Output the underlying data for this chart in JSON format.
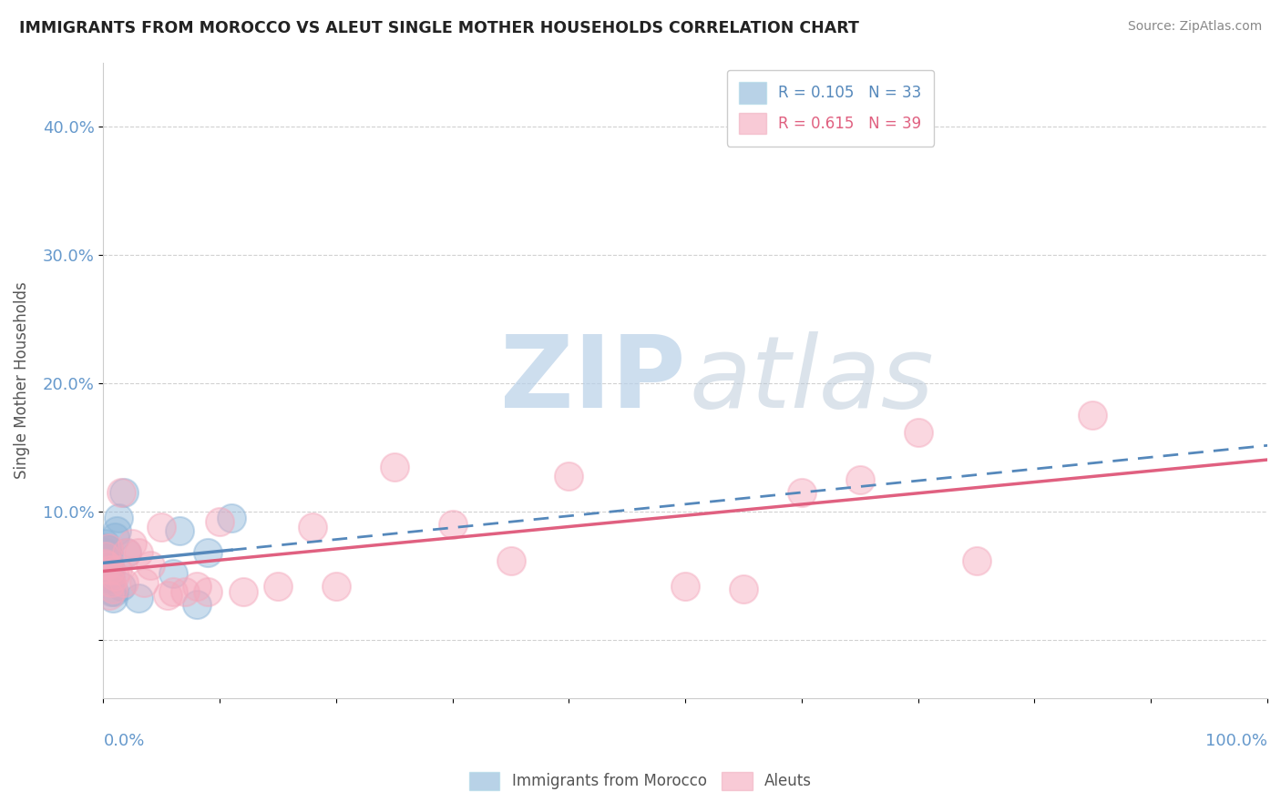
{
  "title": "IMMIGRANTS FROM MOROCCO VS ALEUT SINGLE MOTHER HOUSEHOLDS CORRELATION CHART",
  "source": "Source: ZipAtlas.com",
  "ylabel": "Single Mother Households",
  "ytick_values": [
    0.0,
    0.1,
    0.2,
    0.3,
    0.4
  ],
  "watermark_zip": "ZIP",
  "watermark_atlas": "atlas",
  "xlim": [
    0,
    1.0
  ],
  "ylim": [
    -0.045,
    0.45
  ],
  "legend_label_blue": "R = 0.105   N = 33",
  "legend_label_pink": "R = 0.615   N = 39",
  "blue_x": [
    0.001,
    0.001,
    0.001,
    0.002,
    0.002,
    0.002,
    0.003,
    0.003,
    0.003,
    0.003,
    0.004,
    0.004,
    0.004,
    0.005,
    0.005,
    0.005,
    0.006,
    0.006,
    0.007,
    0.008,
    0.009,
    0.01,
    0.011,
    0.013,
    0.015,
    0.018,
    0.02,
    0.03,
    0.06,
    0.065,
    0.08,
    0.09,
    0.11
  ],
  "blue_y": [
    0.068,
    0.075,
    0.06,
    0.072,
    0.065,
    0.058,
    0.068,
    0.062,
    0.055,
    0.05,
    0.07,
    0.065,
    0.048,
    0.058,
    0.055,
    0.052,
    0.055,
    0.048,
    0.038,
    0.033,
    0.038,
    0.08,
    0.085,
    0.095,
    0.042,
    0.115,
    0.068,
    0.033,
    0.052,
    0.085,
    0.028,
    0.068,
    0.095
  ],
  "pink_x": [
    0.001,
    0.002,
    0.003,
    0.004,
    0.005,
    0.006,
    0.007,
    0.008,
    0.01,
    0.012,
    0.015,
    0.018,
    0.02,
    0.025,
    0.03,
    0.035,
    0.04,
    0.05,
    0.055,
    0.06,
    0.07,
    0.08,
    0.09,
    0.1,
    0.12,
    0.15,
    0.18,
    0.2,
    0.25,
    0.3,
    0.35,
    0.4,
    0.5,
    0.55,
    0.6,
    0.65,
    0.7,
    0.75,
    0.85
  ],
  "pink_y": [
    0.06,
    0.065,
    0.058,
    0.072,
    0.035,
    0.055,
    0.045,
    0.04,
    0.05,
    0.055,
    0.115,
    0.045,
    0.068,
    0.075,
    0.068,
    0.045,
    0.058,
    0.088,
    0.035,
    0.038,
    0.038,
    0.042,
    0.038,
    0.092,
    0.038,
    0.042,
    0.088,
    0.042,
    0.135,
    0.09,
    0.062,
    0.128,
    0.042,
    0.04,
    0.115,
    0.125,
    0.162,
    0.062,
    0.175
  ],
  "blue_dot_color": "#8ab4d8",
  "pink_dot_color": "#f4a8bc",
  "blue_line_color": "#5588bb",
  "pink_line_color": "#e06080",
  "grid_color": "#cccccc",
  "bg_color": "#ffffff",
  "title_color": "#222222",
  "axis_color": "#6699cc"
}
